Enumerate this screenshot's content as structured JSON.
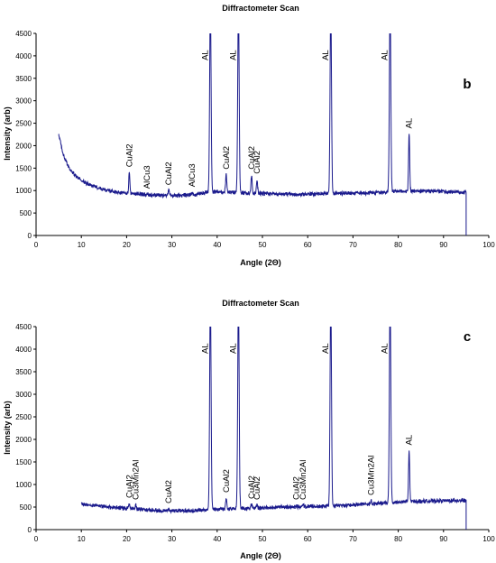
{
  "chart_data": [
    {
      "type": "line",
      "title": "Diffractometer Scan",
      "panel_label": "b",
      "xlabel": "Angle (2Θ)",
      "ylabel": "Intensity (arb)",
      "xlim": [
        0,
        100
      ],
      "ylim": [
        0,
        4500
      ],
      "xticks": [
        0,
        10,
        20,
        30,
        40,
        50,
        60,
        70,
        80,
        90,
        100
      ],
      "yticks": [
        0,
        500,
        1000,
        1500,
        2000,
        2500,
        3000,
        3500,
        4000,
        4500
      ],
      "grid": false,
      "line_color": "#1a1a8c",
      "scan": {
        "start": 5,
        "end": 95
      },
      "background": [
        [
          5,
          2250
        ],
        [
          6,
          1800
        ],
        [
          7,
          1550
        ],
        [
          8,
          1400
        ],
        [
          10,
          1220
        ],
        [
          12,
          1120
        ],
        [
          15,
          1020
        ],
        [
          18,
          960
        ],
        [
          22,
          930
        ],
        [
          26,
          900
        ],
        [
          30,
          890
        ],
        [
          35,
          900
        ],
        [
          37,
          950
        ],
        [
          40,
          980
        ],
        [
          46,
          950
        ],
        [
          50,
          930
        ],
        [
          55,
          920
        ],
        [
          60,
          920
        ],
        [
          64,
          930
        ],
        [
          67,
          940
        ],
        [
          72,
          950
        ],
        [
          76,
          960
        ],
        [
          80,
          980
        ],
        [
          84,
          990
        ],
        [
          90,
          980
        ],
        [
          95,
          960
        ]
      ],
      "peaks": [
        {
          "x": 20.6,
          "y": 1400,
          "label": "CuAl2"
        },
        {
          "x": 24.5,
          "y": 920,
          "label": "AlCu3"
        },
        {
          "x": 29.3,
          "y": 1000,
          "label": "CuAl2"
        },
        {
          "x": 34.5,
          "y": 960,
          "label": "AlCu3"
        },
        {
          "x": 38.5,
          "y": 4500,
          "label": "AL"
        },
        {
          "x": 42.0,
          "y": 1350,
          "label": "CuAl2"
        },
        {
          "x": 44.7,
          "y": 4500,
          "label": "AL"
        },
        {
          "x": 47.6,
          "y": 1350,
          "label": "CuAl2"
        },
        {
          "x": 48.8,
          "y": 1250,
          "label": "CuAl2"
        },
        {
          "x": 65.1,
          "y": 4500,
          "label": "AL"
        },
        {
          "x": 78.2,
          "y": 4500,
          "label": "AL"
        },
        {
          "x": 82.4,
          "y": 2260,
          "label": "AL"
        }
      ]
    },
    {
      "type": "line",
      "title": "Diffractometer Scan",
      "panel_label": "c",
      "xlabel": "Angle (2Θ)",
      "ylabel": "Intensity (arb)",
      "xlim": [
        0,
        100
      ],
      "ylim": [
        0,
        4500
      ],
      "xticks": [
        0,
        10,
        20,
        30,
        40,
        50,
        60,
        70,
        80,
        90,
        100
      ],
      "yticks": [
        0,
        500,
        1000,
        1500,
        2000,
        2500,
        3000,
        3500,
        4000,
        4500
      ],
      "grid": false,
      "line_color": "#1a1a8c",
      "scan": {
        "start": 10,
        "end": 95
      },
      "background": [
        [
          10,
          570
        ],
        [
          15,
          510
        ],
        [
          20,
          470
        ],
        [
          25,
          430
        ],
        [
          30,
          420
        ],
        [
          35,
          420
        ],
        [
          38,
          440
        ],
        [
          41,
          460
        ],
        [
          46,
          470
        ],
        [
          50,
          480
        ],
        [
          55,
          500
        ],
        [
          60,
          510
        ],
        [
          64,
          520
        ],
        [
          68,
          540
        ],
        [
          72,
          560
        ],
        [
          76,
          580
        ],
        [
          80,
          610
        ],
        [
          84,
          630
        ],
        [
          90,
          640
        ],
        [
          95,
          650
        ]
      ],
      "peaks": [
        {
          "x": 20.6,
          "y": 580,
          "label": "CuAl2"
        },
        {
          "x": 22.0,
          "y": 540,
          "label": "Cu3Mn2Al"
        },
        {
          "x": 29.3,
          "y": 460,
          "label": "CuAl2"
        },
        {
          "x": 38.5,
          "y": 4500,
          "label": "AL"
        },
        {
          "x": 42.0,
          "y": 700,
          "label": "CuAl2"
        },
        {
          "x": 44.7,
          "y": 4500,
          "label": "AL"
        },
        {
          "x": 47.6,
          "y": 560,
          "label": "CuAl2"
        },
        {
          "x": 48.8,
          "y": 540,
          "label": "CuAl2"
        },
        {
          "x": 57.5,
          "y": 540,
          "label": "CuAl2"
        },
        {
          "x": 59.0,
          "y": 540,
          "label": "Cu3Mn2Al"
        },
        {
          "x": 65.1,
          "y": 4500,
          "label": "AL"
        },
        {
          "x": 74.0,
          "y": 640,
          "label": "Cu3Mn2Al"
        },
        {
          "x": 78.2,
          "y": 4500,
          "label": "AL"
        },
        {
          "x": 82.4,
          "y": 1750,
          "label": "AL"
        }
      ]
    }
  ]
}
